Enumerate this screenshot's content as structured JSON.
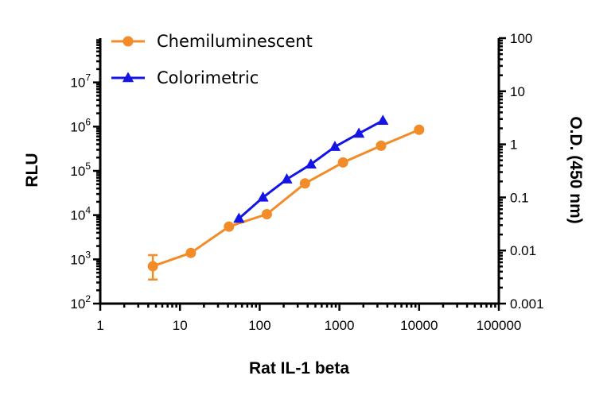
{
  "chart_data": {
    "type": "line",
    "title": "",
    "xlabel": "Rat IL-1 beta",
    "ylabel_left": "RLU",
    "ylabel_right": "O.D. (450 nm)",
    "x_scale": "log",
    "y_scale": "log",
    "xlim": [
      1,
      100000
    ],
    "ylim_left": [
      100,
      100000000
    ],
    "ylim_right": [
      0.001,
      100
    ],
    "x_ticks": [
      {
        "value": 1,
        "label": "1"
      },
      {
        "value": 10,
        "label": "10"
      },
      {
        "value": 100,
        "label": "100"
      },
      {
        "value": 1000,
        "label": "1000"
      },
      {
        "value": 10000,
        "label": "10000"
      },
      {
        "value": 100000,
        "label": "100000"
      }
    ],
    "y_left_ticks": [
      {
        "value": 100,
        "base": "10",
        "exp": "2"
      },
      {
        "value": 1000,
        "base": "10",
        "exp": "3"
      },
      {
        "value": 10000,
        "base": "10",
        "exp": "4"
      },
      {
        "value": 100000,
        "base": "10",
        "exp": "5"
      },
      {
        "value": 1000000,
        "base": "10",
        "exp": "6"
      },
      {
        "value": 10000000,
        "base": "10",
        "exp": "7"
      }
    ],
    "y_right_ticks": [
      {
        "value": 0.001,
        "label": "0.001"
      },
      {
        "value": 0.01,
        "label": "0.01"
      },
      {
        "value": 0.1,
        "label": "0.1"
      },
      {
        "value": 1,
        "label": "1"
      },
      {
        "value": 10,
        "label": "10"
      },
      {
        "value": 100,
        "label": "100"
      }
    ],
    "grid": false,
    "legend_position": "top-left",
    "series": [
      {
        "name": "Chemiluminescent",
        "axis": "left",
        "marker": "circle",
        "color": "#F28C28",
        "x": [
          4.57,
          13.7,
          41.2,
          123,
          370,
          1111,
          3333,
          10000
        ],
        "y": [
          700,
          1400,
          5500,
          10500,
          52000,
          155000,
          370000,
          850000
        ],
        "error": [
          [
            350,
            1250
          ],
          null,
          null,
          null,
          null,
          null,
          null,
          null
        ]
      },
      {
        "name": "Colorimetric",
        "axis": "right",
        "marker": "triangle",
        "color": "#1414E6",
        "x": [
          54.9,
          110,
          219,
          439,
          878,
          1756,
          3512
        ],
        "y": [
          0.04,
          0.1,
          0.22,
          0.42,
          0.9,
          1.6,
          2.8
        ]
      }
    ]
  }
}
